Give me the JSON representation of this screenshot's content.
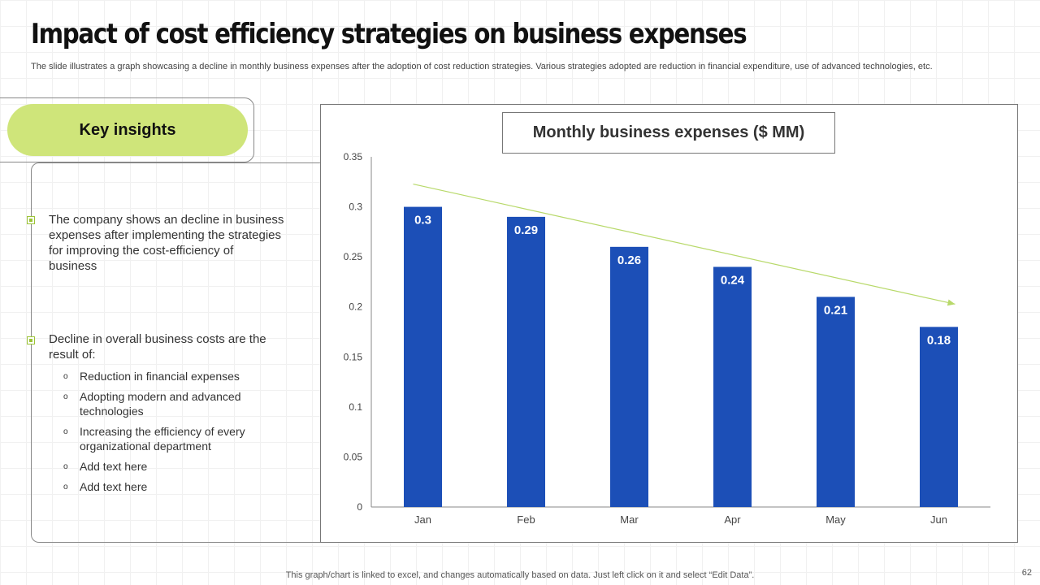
{
  "slide": {
    "title": "Impact of cost efficiency strategies on business expenses",
    "subtitle": "The slide illustrates a graph showcasing a decline in monthly business expenses after the adoption of cost reduction strategies. Various strategies adopted are reduction in financial expenditure, use of advanced technologies, etc.",
    "footer_note": "This graph/chart is linked to excel,  and changes automatically based on data. Just left click on it and select “Edit Data”.",
    "page_number": "62"
  },
  "insights": {
    "heading": "Key insights",
    "points": [
      "The company shows an decline in business expenses after implementing the strategies for improving the cost-efficiency of business",
      "Decline in overall business costs are the result of:"
    ],
    "sub_bullet_symbol": "o",
    "sub_points": [
      "Reduction in financial expenses",
      "Adopting modern and advanced technologies",
      "Increasing the efficiency of every organizational department",
      "Add text here",
      "Add text here"
    ]
  },
  "colors": {
    "bar": "#1c4fb7",
    "accent": "#cfe57a",
    "trend_line": "#b8d96a",
    "bar_label": "#ffffff"
  },
  "chart_data": {
    "type": "bar",
    "title": "Monthly business expenses ($ MM)",
    "categories": [
      "Jan",
      "Feb",
      "Mar",
      "Apr",
      "May",
      "Jun"
    ],
    "values": [
      0.3,
      0.29,
      0.26,
      0.24,
      0.21,
      0.18
    ],
    "value_labels": [
      "0.3",
      "0.29",
      "0.26",
      "0.24",
      "0.21",
      "0.18"
    ],
    "ylim": [
      0,
      0.35
    ],
    "y_ticks": [
      "0",
      "0.05",
      "0.1",
      "0.15",
      "0.2",
      "0.25",
      "0.3",
      "0.35"
    ],
    "xlabel": "",
    "ylabel": "",
    "grid": false,
    "legend": "none",
    "trend_arrow": "downward"
  }
}
